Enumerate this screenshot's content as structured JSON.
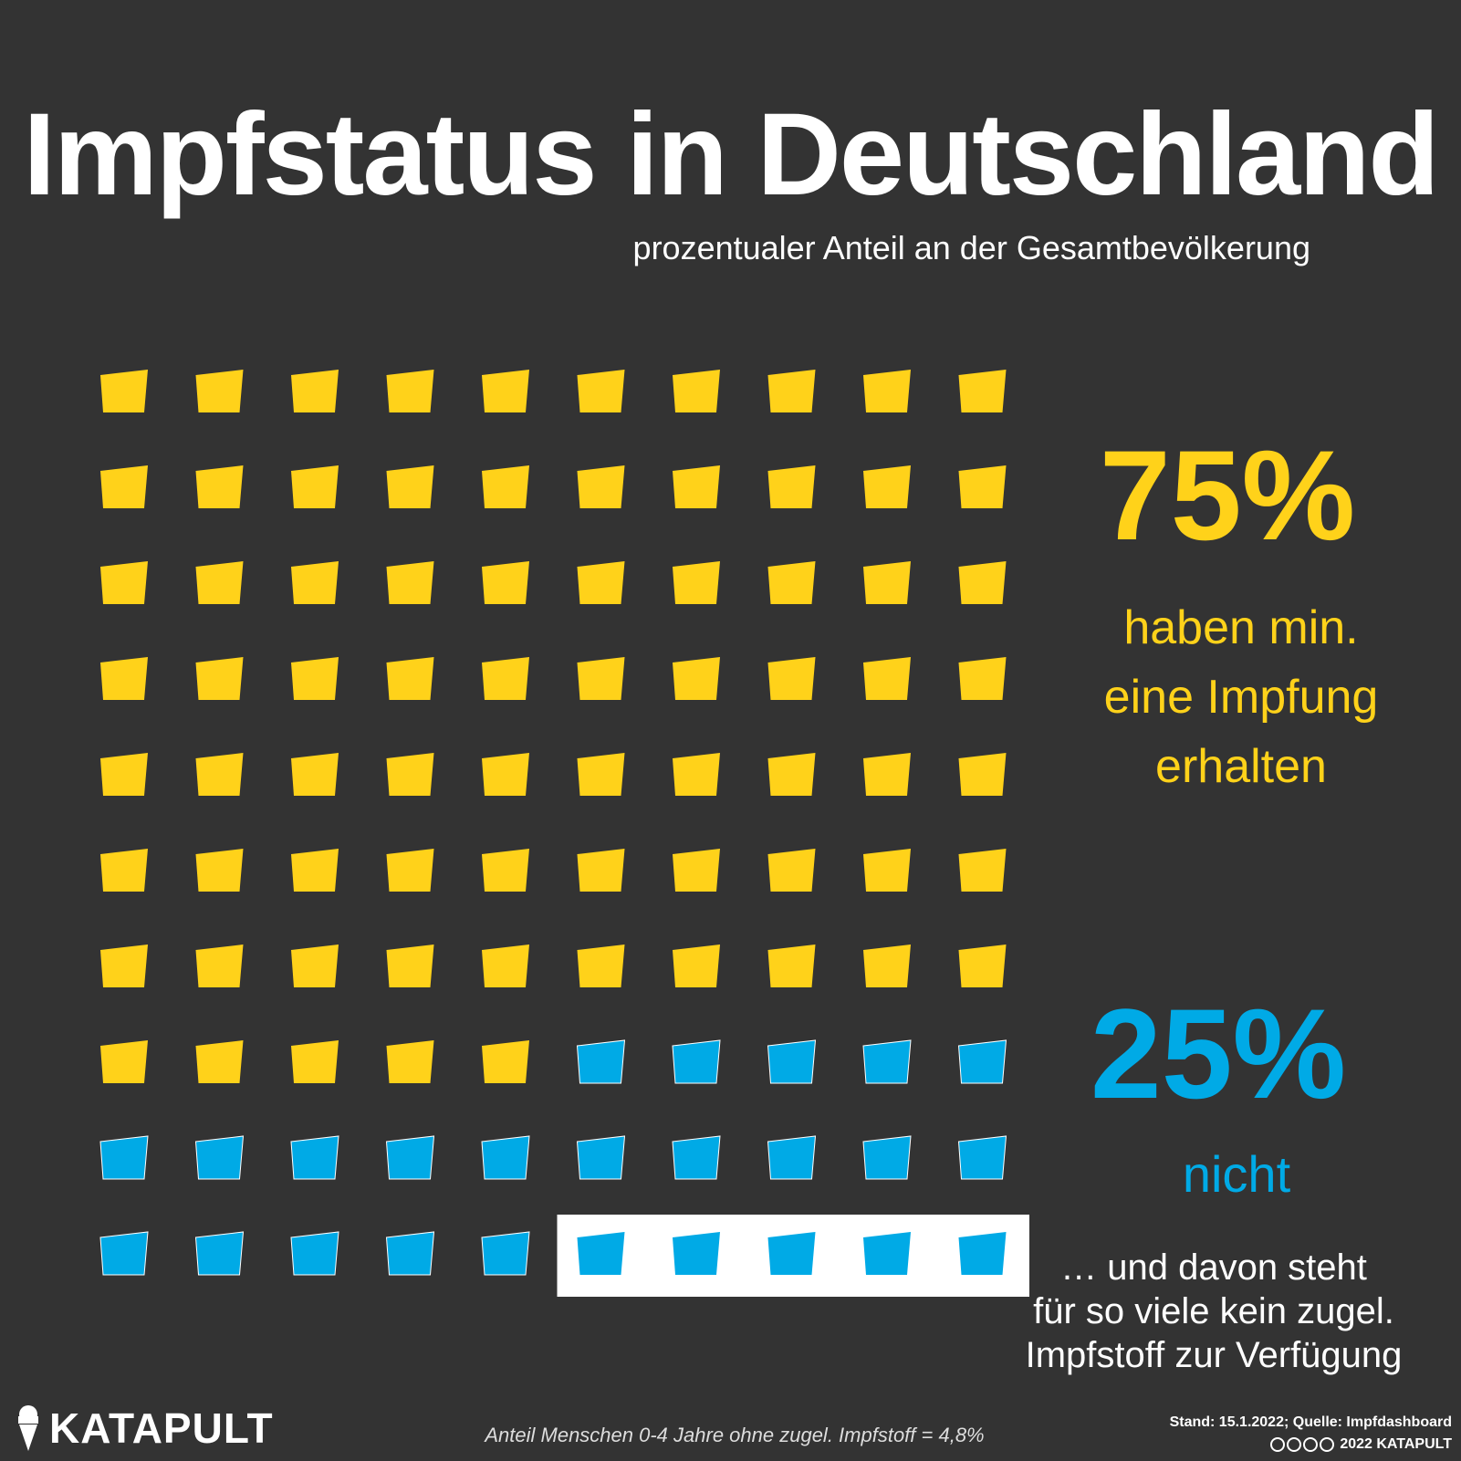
{
  "title": "Impfstatus in Deutschland",
  "subtitle": "prozentualer Anteil an der Gesamtbevölkerung",
  "colors": {
    "background": "#333333",
    "vaccinated": "#ffd21a",
    "not_vaccinated": "#00aae6",
    "highlight_box": "#ffffff",
    "text": "#ffffff"
  },
  "chart_data": {
    "type": "waffle",
    "total_units": 100,
    "series": [
      {
        "name": "haben min. eine Impfung erhalten",
        "value": 75,
        "label": "75%",
        "color": "#ffd21a"
      },
      {
        "name": "nicht",
        "value": 25,
        "label": "25%",
        "color": "#00aae6"
      }
    ],
    "highlight": {
      "value": 5,
      "description": "… und davon steht für so viele kein zugel. Impfstoff zur Verfügung"
    }
  },
  "annotations": {
    "vaccinated_pct": "75%",
    "vaccinated_label": [
      "haben min.",
      "eine Impfung",
      "erhalten"
    ],
    "not_pct": "25%",
    "not_label": "nicht",
    "note_lines": [
      "… und davon steht",
      "für so viele kein zugel.",
      "Impfstoff zur Verfügung"
    ]
  },
  "footer": {
    "logo": "KATAPULT",
    "logo_icon": "ice-cream-cone-icon",
    "footnote": "Anteil Menschen 0-4 Jahre ohne zugel. Impfstoff = 4,8%",
    "source": "Stand: 15.1.2022; Quelle: Impfdashboard",
    "license": "2022 KATAPULT",
    "license_icons": [
      "cc-icon",
      "by-icon",
      "nc-icon",
      "nd-icon"
    ]
  }
}
